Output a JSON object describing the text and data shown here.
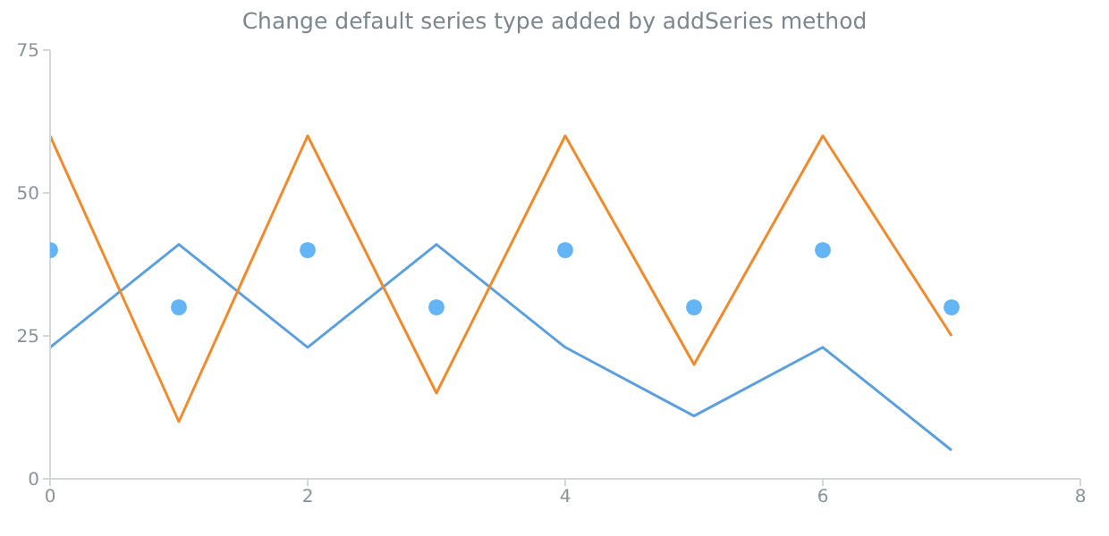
{
  "chart_data": {
    "type": "line",
    "title": "Change default series type added by addSeries method",
    "x": [
      0,
      1,
      2,
      3,
      4,
      5,
      6,
      7
    ],
    "series": [
      {
        "color": "#5b9fde",
        "marker": "none",
        "values": [
          23,
          41,
          23,
          41,
          23,
          11,
          23,
          5
        ]
      },
      {
        "color": "#f08a2c",
        "marker": "none",
        "values": [
          60,
          10,
          60,
          15,
          60,
          20,
          60,
          25
        ]
      },
      {
        "type": "scatter",
        "color": "#64b5f6",
        "marker": "circle",
        "values": [
          40,
          30,
          40,
          30,
          40,
          30,
          40,
          30
        ]
      }
    ],
    "xlim": [
      0,
      8
    ],
    "xticks": [
      0,
      2,
      4,
      6,
      8
    ],
    "ylim": [
      0,
      75
    ],
    "yticks": [
      0,
      25,
      50,
      75
    ],
    "line_style": "solid"
  }
}
